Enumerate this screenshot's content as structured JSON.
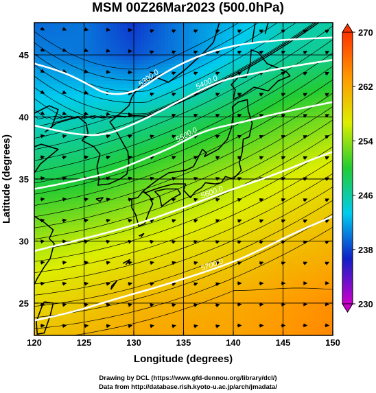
{
  "title": "MSM 00Z26Mar2023 (500.0hPa)",
  "footer": {
    "drawing": "Drawing by DCL (https://www.gfd-dennou.org/library/dcl/)",
    "data_source": "Data from http://database.rish.kyoto-u.ac.jp/arch/jmadata/"
  },
  "chart_data": {
    "type": "heatmap",
    "description_fields": "temperature shading with geopotential height contours and wind streamlines",
    "xlabel": "Longitude (degrees)",
    "ylabel": "Latitude  (degrees)",
    "xlim": [
      120,
      150
    ],
    "ylim": [
      22.4,
      47.6
    ],
    "x_ticks": [
      120,
      125,
      130,
      135,
      140,
      145,
      150
    ],
    "y_ticks": [
      25,
      30,
      35,
      40,
      45
    ],
    "grid": true,
    "colorbar": {
      "range": [
        230,
        270
      ],
      "ticks": [
        230,
        238,
        246,
        254,
        262,
        270
      ],
      "position": "right",
      "colors": [
        "#cc00cc",
        "#1020c8",
        "#00ccee",
        "#22cc33",
        "#ddee00",
        "#ff9900",
        "#ff3300"
      ]
    },
    "temperature_field": {
      "lon": [
        120,
        125,
        130,
        135,
        140,
        145,
        150
      ],
      "lat": [
        47.6,
        45,
        40,
        35,
        30,
        25,
        22.4
      ],
      "values": [
        [
          239.5,
          240,
          237.5,
          240.5,
          242.5,
          245,
          246
        ],
        [
          240.5,
          240,
          238.5,
          240.5,
          243.5,
          246,
          247
        ],
        [
          244.5,
          245,
          246,
          247.5,
          249.5,
          251.5,
          253
        ],
        [
          249,
          249.5,
          251.5,
          253.5,
          255,
          256.5,
          258
        ],
        [
          254.5,
          255.5,
          256.5,
          257.5,
          258.5,
          260,
          261
        ],
        [
          258.5,
          259.5,
          261,
          261.5,
          262,
          263,
          264
        ],
        [
          260,
          261,
          262,
          262.5,
          262.5,
          263.5,
          264.5
        ]
      ]
    },
    "height_contours": [
      {
        "label": "5300.0",
        "lon": [
          120,
          123,
          125.5,
          127,
          129,
          131,
          132.5,
          136,
          140,
          144.5,
          150
        ],
        "lat": [
          44.3,
          43.6,
          42.6,
          41.9,
          41.8,
          42.4,
          43.3,
          44.8,
          45.8,
          46.2,
          46.4
        ]
      },
      {
        "label": "5400.0",
        "lon": [
          120,
          124,
          127,
          130,
          133,
          136,
          139,
          142,
          146,
          150
        ],
        "lat": [
          39.3,
          38.6,
          38.5,
          39.4,
          40.6,
          41.9,
          43.0,
          43.5,
          44.1,
          44.6
        ]
      },
      {
        "label": "5500.0",
        "lon": [
          120,
          122,
          125,
          128,
          131,
          134,
          137,
          141,
          145,
          150
        ],
        "lat": [
          34.2,
          34.5,
          35.0,
          35.6,
          36.6,
          37.6,
          38.9,
          39.6,
          40.4,
          41.2
        ]
      },
      {
        "label": "5600.0",
        "lon": [
          120,
          124,
          128,
          132,
          136,
          140,
          144,
          148,
          150
        ],
        "lat": [
          29.2,
          30.0,
          30.8,
          31.8,
          33.0,
          34.2,
          35.3,
          36.6,
          37.2
        ]
      },
      {
        "label": "5700.0",
        "lon": [
          120,
          124,
          128,
          132,
          136,
          140,
          143,
          146,
          150
        ],
        "lat": [
          23.6,
          24.3,
          25.3,
          26.2,
          27.2,
          28.3,
          29.4,
          30.6,
          32.0
        ]
      }
    ]
  }
}
